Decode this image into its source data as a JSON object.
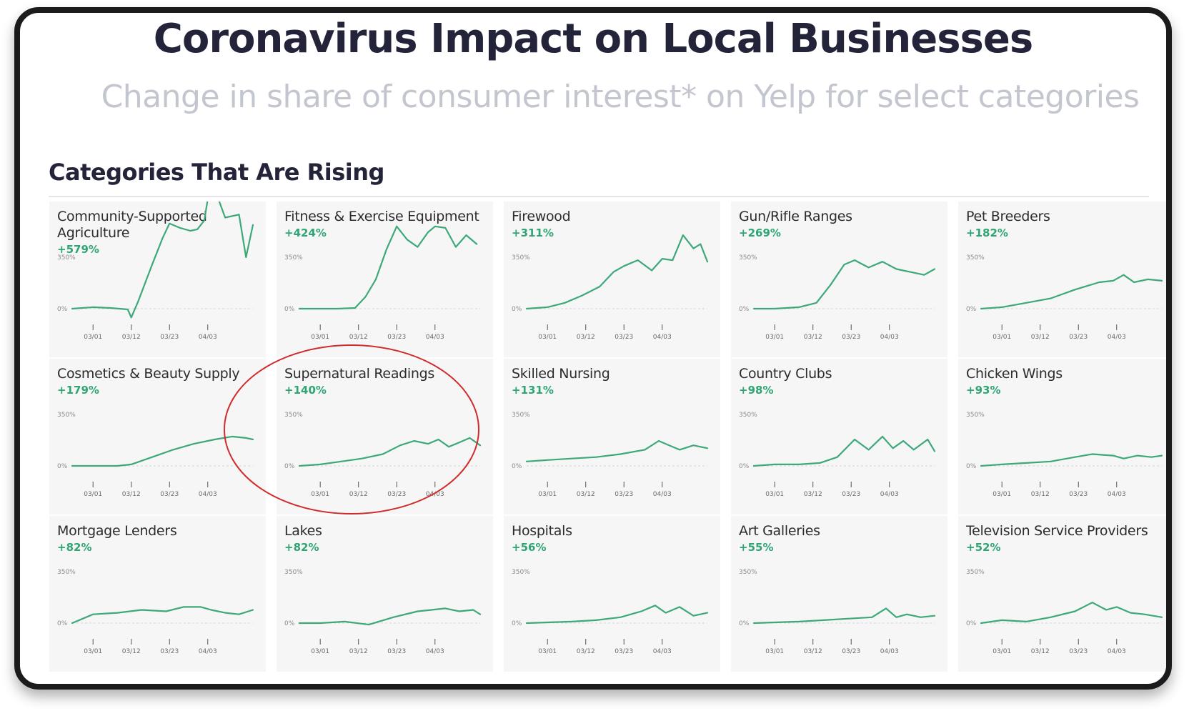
{
  "title": "Coronavirus Impact on Local Businesses",
  "subtitle": "Change in share of consumer interest* on Yelp for select categories",
  "section_title": "Categories That Are Rising",
  "colors": {
    "line": "#3da878",
    "change": "#2fa573",
    "card_bg": "#f6f6f7",
    "annotation": "#d12c2c"
  },
  "chart_data": {
    "type": "line",
    "x_ticks": [
      "03/01",
      "03/12",
      "03/23",
      "04/03"
    ],
    "y_tick_labels": [
      "0%",
      "350%"
    ],
    "ylim": [
      -50,
      900
    ],
    "x_range": [
      "02/24",
      "04/16"
    ],
    "annotation": "circle around Supernatural Readings",
    "panels": [
      {
        "name": "Community-Supported Agriculture",
        "change": "+579%",
        "x": [
          "02/24",
          "03/01",
          "03/06",
          "03/11",
          "03/12",
          "03/14",
          "03/18",
          "03/21",
          "03/23",
          "03/26",
          "03/29",
          "03/31",
          "04/02",
          "04/04",
          "04/06",
          "04/08",
          "04/12",
          "04/14",
          "04/16"
        ],
        "values": [
          0,
          10,
          5,
          -5,
          -60,
          50,
          300,
          480,
          580,
          550,
          530,
          540,
          600,
          890,
          750,
          620,
          640,
          350,
          570
        ]
      },
      {
        "name": "Fitness & Exercise Equipment",
        "change": "+424%",
        "x": [
          "02/24",
          "03/01",
          "03/06",
          "03/11",
          "03/14",
          "03/17",
          "03/20",
          "03/23",
          "03/26",
          "03/29",
          "04/01",
          "04/03",
          "04/06",
          "04/09",
          "04/12",
          "04/15"
        ],
        "values": [
          0,
          0,
          0,
          5,
          80,
          200,
          400,
          560,
          470,
          420,
          520,
          560,
          550,
          420,
          500,
          440
        ]
      },
      {
        "name": "Firewood",
        "change": "+311%",
        "x": [
          "02/24",
          "03/01",
          "03/06",
          "03/11",
          "03/16",
          "03/20",
          "03/23",
          "03/27",
          "03/31",
          "04/03",
          "04/06",
          "04/09",
          "04/12",
          "04/14",
          "04/16"
        ],
        "values": [
          0,
          10,
          40,
          90,
          150,
          250,
          290,
          330,
          260,
          340,
          330,
          500,
          410,
          440,
          320
        ]
      },
      {
        "name": "Gun/Rifle Ranges",
        "change": "+269%",
        "x": [
          "02/24",
          "03/01",
          "03/08",
          "03/13",
          "03/17",
          "03/21",
          "03/24",
          "03/28",
          "04/01",
          "04/05",
          "04/09",
          "04/13",
          "04/16"
        ],
        "values": [
          0,
          0,
          10,
          40,
          160,
          300,
          330,
          280,
          320,
          270,
          250,
          230,
          270
        ]
      },
      {
        "name": "Pet Breeders",
        "change": "+182%",
        "x": [
          "02/24",
          "03/01",
          "03/08",
          "03/15",
          "03/22",
          "03/29",
          "04/02",
          "04/05",
          "04/08",
          "04/12",
          "04/16"
        ],
        "values": [
          0,
          10,
          40,
          70,
          130,
          180,
          190,
          230,
          180,
          200,
          190
        ]
      },
      {
        "name": "Cosmetics & Beauty Supply",
        "change": "+179%",
        "x": [
          "02/24",
          "03/01",
          "03/08",
          "03/12",
          "03/18",
          "03/24",
          "03/30",
          "04/05",
          "04/10",
          "04/14",
          "04/16"
        ],
        "values": [
          0,
          0,
          0,
          10,
          60,
          110,
          150,
          180,
          200,
          190,
          180
        ]
      },
      {
        "name": "Supernatural Readings",
        "change": "+140%",
        "x": [
          "02/24",
          "03/01",
          "03/07",
          "03/13",
          "03/19",
          "03/24",
          "03/28",
          "04/01",
          "04/04",
          "04/07",
          "04/10",
          "04/13",
          "04/16"
        ],
        "values": [
          0,
          10,
          30,
          50,
          80,
          140,
          170,
          150,
          180,
          130,
          160,
          190,
          140
        ]
      },
      {
        "name": "Skilled Nursing",
        "change": "+131%",
        "x": [
          "02/24",
          "03/01",
          "03/08",
          "03/15",
          "03/22",
          "03/29",
          "04/02",
          "04/05",
          "04/08",
          "04/12",
          "04/16"
        ],
        "values": [
          30,
          40,
          50,
          60,
          80,
          110,
          170,
          140,
          110,
          140,
          120
        ]
      },
      {
        "name": "Country Clubs",
        "change": "+98%",
        "x": [
          "02/24",
          "03/01",
          "03/08",
          "03/14",
          "03/19",
          "03/24",
          "03/28",
          "04/01",
          "04/04",
          "04/07",
          "04/10",
          "04/14",
          "04/16"
        ],
        "values": [
          0,
          10,
          10,
          20,
          60,
          180,
          110,
          200,
          120,
          170,
          110,
          180,
          100
        ]
      },
      {
        "name": "Chicken Wings",
        "change": "+93%",
        "x": [
          "02/24",
          "03/01",
          "03/08",
          "03/15",
          "03/22",
          "03/27",
          "04/02",
          "04/05",
          "04/09",
          "04/13",
          "04/16"
        ],
        "values": [
          0,
          10,
          20,
          30,
          60,
          80,
          70,
          50,
          70,
          60,
          70
        ]
      },
      {
        "name": "Mortgage Lenders",
        "change": "+82%",
        "x": [
          "02/24",
          "03/01",
          "03/08",
          "03/15",
          "03/22",
          "03/27",
          "04/01",
          "04/04",
          "04/08",
          "04/12",
          "04/16"
        ],
        "values": [
          0,
          60,
          70,
          90,
          80,
          110,
          110,
          90,
          70,
          60,
          90
        ]
      },
      {
        "name": "Lakes",
        "change": "+82%",
        "x": [
          "02/24",
          "03/01",
          "03/08",
          "03/15",
          "03/22",
          "03/29",
          "04/02",
          "04/06",
          "04/10",
          "04/14",
          "04/16"
        ],
        "values": [
          0,
          0,
          10,
          -10,
          40,
          80,
          90,
          100,
          80,
          90,
          60
        ]
      },
      {
        "name": "Hospitals",
        "change": "+56%",
        "x": [
          "02/24",
          "03/01",
          "03/08",
          "03/15",
          "03/22",
          "03/28",
          "04/01",
          "04/04",
          "04/08",
          "04/12",
          "04/16"
        ],
        "values": [
          0,
          5,
          10,
          20,
          40,
          80,
          120,
          70,
          110,
          50,
          70
        ]
      },
      {
        "name": "Art Galleries",
        "change": "+55%",
        "x": [
          "02/24",
          "03/01",
          "03/08",
          "03/15",
          "03/22",
          "03/29",
          "04/02",
          "04/05",
          "04/08",
          "04/12",
          "04/16"
        ],
        "values": [
          0,
          5,
          10,
          20,
          30,
          40,
          100,
          40,
          60,
          40,
          50
        ]
      },
      {
        "name": "Television Service Providers",
        "change": "+52%",
        "x": [
          "02/24",
          "03/01",
          "03/08",
          "03/15",
          "03/22",
          "03/27",
          "03/31",
          "04/03",
          "04/07",
          "04/11",
          "04/16"
        ],
        "values": [
          0,
          20,
          10,
          40,
          80,
          140,
          90,
          110,
          70,
          60,
          40
        ]
      }
    ]
  }
}
